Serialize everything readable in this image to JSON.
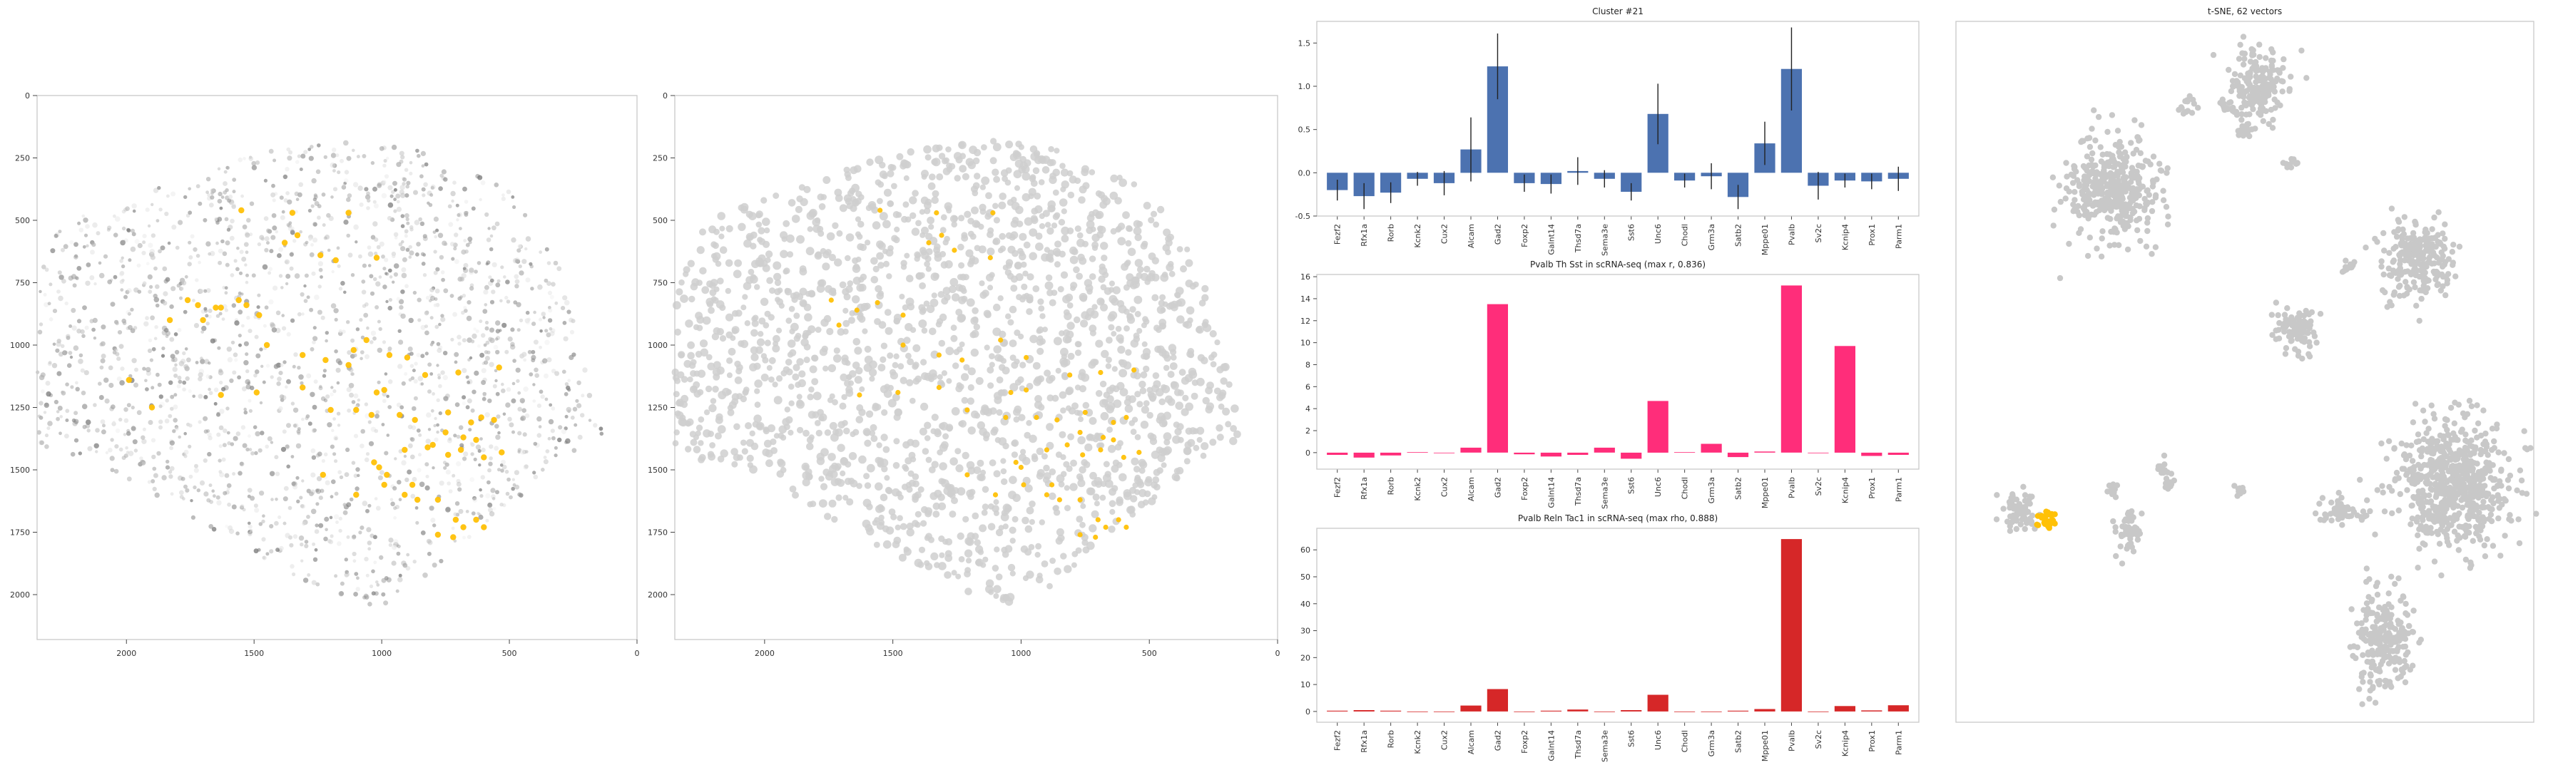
{
  "colors": {
    "background": "#ffffff",
    "frame": "#c8c8c8",
    "cluster_bar": "#4c72b0",
    "pvalb_th_sst_bar": "#ff2d7a",
    "pvalb_reln_tac1_bar": "#d62728",
    "highlight": "#ffc107",
    "tsne_point": "#c8c8c8",
    "cell_point": "#bdbdbd",
    "error_bar": "#222222"
  },
  "chart_data": [
    {
      "type": "scatter",
      "panel": "spatial-map-1",
      "title": "",
      "xlim": [
        2350,
        0
      ],
      "ylim": [
        2180,
        0
      ],
      "xticks": [
        2000,
        1500,
        1000,
        500,
        0
      ],
      "yticks": [
        0,
        250,
        500,
        750,
        1000,
        1250,
        1500,
        1750,
        2000
      ],
      "highlighted_cells": [
        [
          1550,
          460
        ],
        [
          1350,
          470
        ],
        [
          1130,
          470
        ],
        [
          1330,
          560
        ],
        [
          1380,
          590
        ],
        [
          1240,
          640
        ],
        [
          1180,
          660
        ],
        [
          1020,
          650
        ],
        [
          1760,
          820
        ],
        [
          1720,
          840
        ],
        [
          1650,
          850
        ],
        [
          1630,
          850
        ],
        [
          1560,
          820
        ],
        [
          1530,
          840
        ],
        [
          1480,
          880
        ],
        [
          1830,
          900
        ],
        [
          1700,
          900
        ],
        [
          1450,
          1000
        ],
        [
          1310,
          1040
        ],
        [
          1060,
          980
        ],
        [
          1110,
          1020
        ],
        [
          970,
          1040
        ],
        [
          900,
          1050
        ],
        [
          1220,
          1060
        ],
        [
          1130,
          1080
        ],
        [
          540,
          1090
        ],
        [
          700,
          1110
        ],
        [
          830,
          1120
        ],
        [
          990,
          1180
        ],
        [
          1020,
          1190
        ],
        [
          1490,
          1190
        ],
        [
          1310,
          1170
        ],
        [
          1630,
          1200
        ],
        [
          1990,
          1140
        ],
        [
          1900,
          1250
        ],
        [
          1200,
          1260
        ],
        [
          1100,
          1260
        ],
        [
          1040,
          1280
        ],
        [
          930,
          1280
        ],
        [
          870,
          1300
        ],
        [
          740,
          1270
        ],
        [
          650,
          1310
        ],
        [
          610,
          1290
        ],
        [
          560,
          1300
        ],
        [
          750,
          1350
        ],
        [
          680,
          1370
        ],
        [
          630,
          1380
        ],
        [
          690,
          1420
        ],
        [
          800,
          1400
        ],
        [
          820,
          1410
        ],
        [
          910,
          1420
        ],
        [
          740,
          1440
        ],
        [
          600,
          1450
        ],
        [
          530,
          1430
        ],
        [
          1030,
          1470
        ],
        [
          1010,
          1490
        ],
        [
          1230,
          1520
        ],
        [
          1100,
          1600
        ],
        [
          990,
          1560
        ],
        [
          980,
          1520
        ],
        [
          880,
          1560
        ],
        [
          910,
          1600
        ],
        [
          860,
          1620
        ],
        [
          780,
          1620
        ],
        [
          780,
          1760
        ],
        [
          720,
          1770
        ],
        [
          710,
          1700
        ],
        [
          680,
          1730
        ],
        [
          630,
          1700
        ],
        [
          600,
          1730
        ]
      ]
    },
    {
      "type": "scatter",
      "panel": "spatial-map-2",
      "title": "",
      "xlim": [
        2350,
        0
      ],
      "ylim": [
        2180,
        0
      ],
      "xticks": [
        2000,
        1500,
        1000,
        500,
        0
      ],
      "yticks": [
        0,
        250,
        500,
        750,
        1000,
        1250,
        1500,
        1750,
        2000
      ],
      "highlighted_cells": [
        [
          1550,
          460
        ],
        [
          1330,
          470
        ],
        [
          1110,
          470
        ],
        [
          1310,
          560
        ],
        [
          1360,
          590
        ],
        [
          1260,
          620
        ],
        [
          1120,
          650
        ],
        [
          1740,
          820
        ],
        [
          1640,
          860
        ],
        [
          1560,
          830
        ],
        [
          1460,
          880
        ],
        [
          1710,
          920
        ],
        [
          1460,
          1000
        ],
        [
          1320,
          1040
        ],
        [
          1080,
          980
        ],
        [
          980,
          1050
        ],
        [
          1230,
          1060
        ],
        [
          560,
          1100
        ],
        [
          690,
          1110
        ],
        [
          810,
          1120
        ],
        [
          980,
          1180
        ],
        [
          1040,
          1190
        ],
        [
          1480,
          1190
        ],
        [
          1320,
          1170
        ],
        [
          1630,
          1200
        ],
        [
          1210,
          1260
        ],
        [
          1060,
          1290
        ],
        [
          940,
          1290
        ],
        [
          860,
          1300
        ],
        [
          750,
          1270
        ],
        [
          640,
          1310
        ],
        [
          590,
          1290
        ],
        [
          770,
          1350
        ],
        [
          680,
          1370
        ],
        [
          640,
          1380
        ],
        [
          690,
          1420
        ],
        [
          820,
          1400
        ],
        [
          900,
          1420
        ],
        [
          760,
          1440
        ],
        [
          600,
          1450
        ],
        [
          540,
          1430
        ],
        [
          1020,
          1470
        ],
        [
          1000,
          1490
        ],
        [
          1210,
          1520
        ],
        [
          1100,
          1600
        ],
        [
          990,
          1560
        ],
        [
          880,
          1560
        ],
        [
          900,
          1600
        ],
        [
          850,
          1620
        ],
        [
          770,
          1620
        ],
        [
          770,
          1760
        ],
        [
          710,
          1770
        ],
        [
          700,
          1700
        ],
        [
          670,
          1730
        ],
        [
          620,
          1700
        ],
        [
          590,
          1730
        ]
      ]
    },
    {
      "type": "bar",
      "panel": "cluster-bar-chart",
      "title": "Cluster #21",
      "categories": [
        "Fezf2",
        "Rfx1a",
        "Rorb",
        "Kcnk2",
        "Cux2",
        "Alcam",
        "Gad2",
        "Foxp2",
        "Galnt14",
        "Thsd7a",
        "Sema3e",
        "Sst6",
        "Unc6",
        "Chodl",
        "Grm3a",
        "Satb2",
        "Mppe01",
        "Pvalb",
        "Sv2c",
        "Kcnip4",
        "Prox1",
        "Parm1"
      ],
      "values": [
        -0.2,
        -0.27,
        -0.23,
        -0.07,
        -0.12,
        0.27,
        1.23,
        -0.12,
        -0.13,
        0.02,
        -0.07,
        -0.22,
        0.68,
        -0.09,
        -0.04,
        -0.28,
        0.34,
        1.2,
        -0.15,
        -0.09,
        -0.1,
        -0.07
      ],
      "errors": [
        0.12,
        0.15,
        0.12,
        0.08,
        0.14,
        0.37,
        0.38,
        0.1,
        0.11,
        0.16,
        0.1,
        0.1,
        0.35,
        0.08,
        0.15,
        0.14,
        0.25,
        0.48,
        0.16,
        0.08,
        0.09,
        0.14
      ],
      "ylim": [
        -0.5,
        1.75
      ],
      "yticks": [
        -0.5,
        0.0,
        0.5,
        1.0,
        1.5
      ],
      "xlabel": "",
      "ylabel": ""
    },
    {
      "type": "bar",
      "panel": "pvalb-th-sst-bar-chart",
      "title": "Pvalb Th Sst in scRNA-seq (max r, 0.836)",
      "categories": [
        "Fezf2",
        "Rfx1a",
        "Rorb",
        "Kcnk2",
        "Cux2",
        "Alcam",
        "Gad2",
        "Foxp2",
        "Galnt14",
        "Thsd7a",
        "Sema3e",
        "Sst6",
        "Unc6",
        "Chodl",
        "Grm3a",
        "Satb2",
        "Mppe01",
        "Pvalb",
        "Sv2c",
        "Kcnip4",
        "Prox1",
        "Parm1"
      ],
      "values": [
        -0.2,
        -0.45,
        -0.25,
        0.05,
        0.0,
        0.45,
        13.5,
        -0.15,
        -0.35,
        -0.2,
        0.45,
        -0.55,
        4.7,
        0.05,
        0.8,
        -0.4,
        0.1,
        15.2,
        0.0,
        9.7,
        -0.3,
        -0.2
      ],
      "ylim": [
        -1.5,
        16.2
      ],
      "yticks": [
        0,
        2,
        4,
        6,
        8,
        10,
        12,
        14,
        16
      ],
      "xlabel": "",
      "ylabel": ""
    },
    {
      "type": "bar",
      "panel": "pvalb-reln-tac1-bar-chart",
      "title": "Pvalb Reln Tac1 in scRNA-seq (max rho, 0.888)",
      "categories": [
        "Fezf2",
        "Rfx1a",
        "Rorb",
        "Kcnk2",
        "Cux2",
        "Alcam",
        "Gad2",
        "Foxp2",
        "Galnt14",
        "Thsd7a",
        "Sema3e",
        "Sst6",
        "Unc6",
        "Chodl",
        "Grm3a",
        "Satb2",
        "Mppe01",
        "Pvalb",
        "Sv2c",
        "Kcnip4",
        "Prox1",
        "Parm1"
      ],
      "values": [
        0.3,
        0.5,
        0.3,
        0.0,
        0.0,
        2.2,
        8.3,
        0.0,
        0.3,
        0.7,
        0.0,
        0.5,
        6.2,
        0.0,
        0.0,
        0.3,
        0.9,
        64.0,
        0.0,
        2.0,
        0.4,
        2.3
      ],
      "ylim": [
        -4,
        68
      ],
      "yticks": [
        0,
        10,
        20,
        30,
        40,
        50,
        60
      ],
      "xlabel": "",
      "ylabel": ""
    },
    {
      "type": "scatter",
      "panel": "tsne-embedding",
      "title": "t-SNE, 62 vectors",
      "xlim": [
        0,
        100
      ],
      "ylim": [
        0,
        100
      ],
      "clusters": [
        {
          "center": [
            52,
            9
          ],
          "spread": [
            4.5,
            4.5
          ],
          "highlighted": false
        },
        {
          "center": [
            40,
            12
          ],
          "spread": [
            1.5,
            1.2
          ],
          "highlighted": false
        },
        {
          "center": [
            47,
            12
          ],
          "spread": [
            1.5,
            1.2
          ],
          "highlighted": false
        },
        {
          "center": [
            50,
            15
          ],
          "spread": [
            1.5,
            1.2
          ],
          "highlighted": false
        },
        {
          "center": [
            27,
            24
          ],
          "spread": [
            7,
            6.5
          ],
          "highlighted": false
        },
        {
          "center": [
            58,
            20
          ],
          "spread": [
            1,
            1
          ],
          "highlighted": false
        },
        {
          "center": [
            80,
            34
          ],
          "spread": [
            5.5,
            5
          ],
          "highlighted": false
        },
        {
          "center": [
            68,
            35
          ],
          "spread": [
            0.9,
            0.9
          ],
          "highlighted": false
        },
        {
          "center": [
            59,
            44
          ],
          "spread": [
            3.3,
            3.3
          ],
          "highlighted": false
        },
        {
          "center": [
            86,
            66
          ],
          "spread": [
            9,
            8
          ],
          "highlighted": false
        },
        {
          "center": [
            74,
            88
          ],
          "spread": [
            4.5,
            6
          ],
          "highlighted": false
        },
        {
          "center": [
            67,
            70
          ],
          "spread": [
            4,
            1.5
          ],
          "highlighted": false
        },
        {
          "center": [
            11,
            70
          ],
          "spread": [
            3,
            2.5
          ],
          "highlighted": false
        },
        {
          "center": [
            16,
            71
          ],
          "spread": [
            1.9,
            1.7
          ],
          "highlighted": true
        },
        {
          "center": [
            30,
            73
          ],
          "spread": [
            2,
            2.8
          ],
          "highlighted": false
        },
        {
          "center": [
            27,
            67
          ],
          "spread": [
            0.9,
            0.9
          ],
          "highlighted": false
        },
        {
          "center": [
            36,
            64
          ],
          "spread": [
            1.1,
            1.1
          ],
          "highlighted": false
        },
        {
          "center": [
            37,
            66
          ],
          "spread": [
            0.8,
            0.8
          ],
          "highlighted": false
        },
        {
          "center": [
            49,
            67
          ],
          "spread": [
            0.9,
            0.9
          ],
          "highlighted": false
        }
      ]
    }
  ]
}
